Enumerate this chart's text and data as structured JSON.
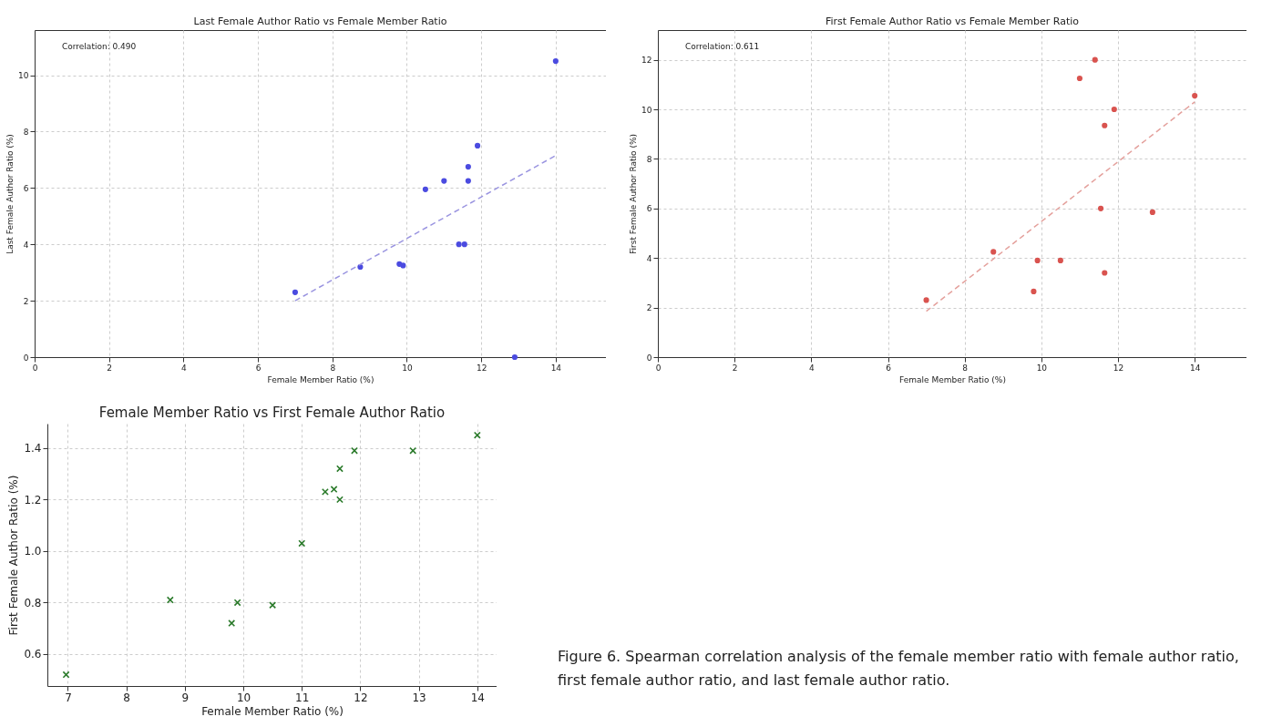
{
  "chart_data": [
    {
      "type": "scatter",
      "title": "Last Female Author Ratio vs Female Member Ratio",
      "xlabel": "Female Member Ratio (%)",
      "ylabel": "Last Female Author Ratio (%)",
      "annotations": [
        "Correlation: 0.490"
      ],
      "xlim": [
        0,
        15.35
      ],
      "ylim": [
        0,
        11.6
      ],
      "xticks": [
        0,
        2,
        4,
        6,
        8,
        10,
        12,
        14
      ],
      "yticks": [
        0,
        2,
        4,
        6,
        8,
        10
      ],
      "grid": true,
      "series": [
        {
          "type": "scatter",
          "color": "#4b4be0",
          "marker": "circle",
          "x": [
            7.0,
            8.75,
            9.8,
            9.9,
            10.5,
            11.0,
            11.4,
            11.55,
            11.65,
            11.65,
            11.9,
            12.9,
            14.0
          ],
          "values": [
            2.3,
            3.2,
            3.3,
            3.25,
            5.95,
            6.25,
            4.0,
            4.0,
            6.75,
            6.25,
            7.5,
            0,
            10.5
          ]
        },
        {
          "type": "line",
          "color": "#9a94e0",
          "line_style": "dashed",
          "x": [
            7,
            14
          ],
          "values": [
            2.0,
            7.15
          ]
        }
      ]
    },
    {
      "type": "scatter",
      "title": "First Female Author Ratio vs Female Member Ratio",
      "xlabel": "Female Member Ratio (%)",
      "ylabel": "First Female Author Ratio (%)",
      "annotations": [
        "Correlation: 0.611"
      ],
      "xlim": [
        0,
        15.35
      ],
      "ylim": [
        0,
        13.2
      ],
      "xticks": [
        0,
        2,
        4,
        6,
        8,
        10,
        12,
        14
      ],
      "yticks": [
        0,
        2,
        4,
        6,
        8,
        10,
        12
      ],
      "grid": true,
      "series": [
        {
          "type": "scatter",
          "color": "#d9534f",
          "marker": "circle",
          "x": [
            7.0,
            8.75,
            9.8,
            9.9,
            10.5,
            11.0,
            11.4,
            11.55,
            11.65,
            11.65,
            11.9,
            12.9,
            14.0
          ],
          "values": [
            2.3,
            4.25,
            2.65,
            3.9,
            3.9,
            11.25,
            12.0,
            6.0,
            9.35,
            3.4,
            10.0,
            5.85,
            10.55
          ]
        },
        {
          "type": "line",
          "color": "#e4a09c",
          "line_style": "dashed",
          "x": [
            7,
            14
          ],
          "values": [
            1.85,
            10.3
          ]
        }
      ]
    },
    {
      "type": "scatter",
      "title": "Female Member Ratio vs First Female Author Ratio",
      "xlabel": "Female Member Ratio (%)",
      "ylabel": "First Female Author Ratio (%)",
      "xlim": [
        6.65,
        14.33
      ],
      "ylim": [
        0.476,
        1.495
      ],
      "xticks": [
        7,
        8,
        9,
        10,
        11,
        12,
        13,
        14
      ],
      "yticks": [
        0.6,
        0.8,
        {
          "value": 1.0,
          "label": "1.0"
        },
        1.2,
        1.4
      ],
      "grid": true,
      "series": [
        {
          "type": "scatter",
          "color": "#2a7a2a",
          "marker": "cross",
          "x": [
            6.97,
            8.75,
            9.8,
            9.9,
            10.5,
            11.0,
            11.4,
            11.55,
            11.65,
            11.65,
            11.9,
            12.9,
            14.0
          ],
          "values": [
            0.52,
            0.81,
            0.72,
            0.8,
            0.79,
            1.03,
            1.23,
            1.24,
            1.32,
            1.2,
            1.39,
            1.39,
            1.45
          ]
        }
      ]
    },
    {
      "type": "other",
      "annotations": [
        "Figure 6. Spearman correlation analysis of the female member ratio with female author ratio, first female author ratio, and last female author ratio."
      ]
    }
  ]
}
